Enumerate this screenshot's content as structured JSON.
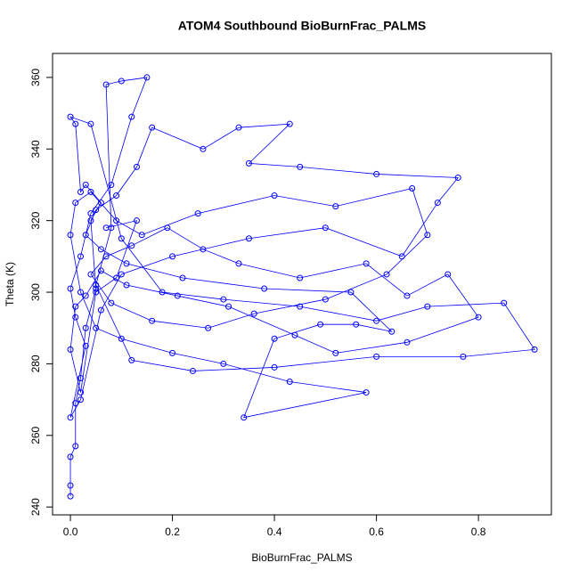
{
  "chart_data": {
    "type": "line",
    "title": "ATOM4 Southbound BioBurnFrac_PALMS",
    "x_label": "BioBurnFrac_PALMS",
    "y_label": "Theta (K)",
    "xlim": [
      -0.035,
      0.943
    ],
    "ylim": [
      237.8,
      366.7
    ],
    "xticks": [
      {
        "value": 0,
        "label": "0.0"
      },
      0.2,
      0.4,
      0.6,
      0.8
    ],
    "yticks": [
      240,
      260,
      280,
      300,
      320,
      340,
      360
    ],
    "series": [
      {
        "color": "#0000ff",
        "x": [
          0.0,
          0.0,
          0.0,
          0.01,
          0.01,
          0.02,
          0.03,
          0.05,
          0.04,
          0.06,
          0.03,
          0.02,
          0.01,
          0.0,
          0.04,
          0.1,
          0.18,
          0.3,
          0.45,
          0.6,
          0.7,
          0.85,
          0.91,
          0.77,
          0.6,
          0.4,
          0.24,
          0.12,
          0.05,
          0.08,
          0.07,
          0.1,
          0.15,
          0.12,
          0.08,
          0.04,
          0.02,
          0.0,
          0.01,
          0.03,
          0.0,
          0.02,
          0.06,
          0.1,
          0.2,
          0.35,
          0.5,
          0.65,
          0.72,
          0.76,
          0.6,
          0.45,
          0.35,
          0.43,
          0.33,
          0.26,
          0.16,
          0.13,
          0.09,
          0.05,
          0.03,
          0.06,
          0.11,
          0.22,
          0.38,
          0.55,
          0.63,
          0.56,
          0.49,
          0.4,
          0.34,
          0.58,
          0.43,
          0.3,
          0.2,
          0.1,
          0.05,
          0.02,
          0.0,
          0.01,
          0.04,
          0.09,
          0.14,
          0.25,
          0.4,
          0.52,
          0.67,
          0.7,
          0.62,
          0.5,
          0.36,
          0.27,
          0.16,
          0.08,
          0.04,
          0.07,
          0.12,
          0.19,
          0.26,
          0.33,
          0.45,
          0.58,
          0.66,
          0.74,
          0.8,
          0.66,
          0.52,
          0.44,
          0.31,
          0.21,
          0.11,
          0.06,
          0.03,
          0.01,
          0.0,
          0.02,
          0.05,
          0.09,
          0.13,
          0.07
        ],
        "values": [
          243,
          246,
          254,
          257,
          269,
          276,
          290,
          301,
          320,
          325,
          330,
          328,
          347,
          349,
          347,
          315,
          300,
          298,
          296,
          292,
          296,
          297,
          284,
          282,
          282,
          279,
          278,
          281,
          302,
          318,
          358,
          359,
          360,
          349,
          330,
          322,
          310,
          301,
          293,
          285,
          265,
          270,
          295,
          305,
          310,
          315,
          318,
          310,
          325,
          332,
          333,
          335,
          336,
          347,
          346,
          340,
          346,
          335,
          327,
          323,
          316,
          312,
          308,
          304,
          301,
          300,
          289,
          291,
          291,
          287,
          265,
          272,
          275,
          280,
          283,
          287,
          290,
          300,
          316,
          325,
          328,
          320,
          316,
          322,
          327,
          324,
          329,
          316,
          305,
          298,
          294,
          290,
          292,
          297,
          305,
          310,
          313,
          318,
          312,
          308,
          304,
          308,
          299,
          305,
          293,
          286,
          283,
          288,
          296,
          299,
          302,
          306,
          299,
          296,
          284,
          272,
          300,
          304,
          320,
          318
        ]
      }
    ]
  }
}
